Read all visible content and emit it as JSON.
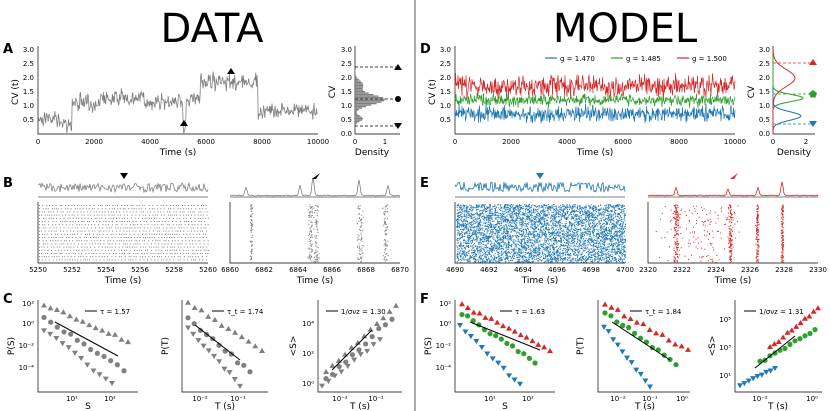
{
  "headers": {
    "data": "DATA",
    "model": "MODEL"
  },
  "panel_labels": [
    "A",
    "B",
    "C",
    "D",
    "E",
    "F"
  ],
  "colors": {
    "data": "#808080",
    "blue": "#1f77b4",
    "green": "#2ca02c",
    "red": "#d62728"
  },
  "panelA": {
    "ylabel": "CV (t)",
    "xlabel": "Time (s)",
    "xticks": [
      "0",
      "2000",
      "4000",
      "6000",
      "8000",
      "10000"
    ],
    "yticks": [
      "0.5",
      "1.0",
      "1.5",
      "2.0",
      "2.5",
      "3.0"
    ],
    "hist_ylabel": "CV",
    "hist_xlabel": "Density",
    "hist_xticks": [
      "0",
      "1"
    ],
    "hist_yticks": [
      "0.0",
      "0.5",
      "1.0",
      "1.5",
      "2.0",
      "2.5",
      "3.0"
    ]
  },
  "panelD": {
    "ylabel": "CV (t)",
    "xlabel": "Time (s)",
    "xticks": [
      "0",
      "2000",
      "4000",
      "6000",
      "8000",
      "10000"
    ],
    "yticks": [
      "0.5",
      "1.0",
      "1.5",
      "2.0",
      "2.5",
      "3.0"
    ],
    "legend": [
      "g = 1.470",
      "g = 1.485",
      "g = 1.500"
    ],
    "hist_ylabel": "CV",
    "hist_xlabel": "Density",
    "hist_xticks": [
      "0",
      "2"
    ],
    "hist_yticks": [
      "0.0",
      "0.5",
      "1.0",
      "1.5",
      "2.0",
      "2.5",
      "3.0"
    ]
  },
  "panelB": {
    "xlabel": "Time (s)",
    "left_xticks": [
      "5250",
      "5252",
      "5254",
      "5256",
      "5258",
      "5260"
    ],
    "right_xticks": [
      "6860",
      "6862",
      "6864",
      "6866",
      "6868",
      "6870"
    ]
  },
  "panelE": {
    "xlabel": "Time (s)",
    "left_xticks": [
      "4690",
      "4692",
      "4694",
      "4696",
      "4698",
      "4700"
    ],
    "right_xticks": [
      "2320",
      "2322",
      "2324",
      "2326",
      "2328",
      "2330"
    ]
  },
  "panelC": {
    "s": {
      "ylabel": "P(S)",
      "xlabel": "S",
      "legend": "τ = 1.57",
      "yticks": [
        "10²",
        "10⁰",
        "10⁻²",
        "10⁻⁴"
      ],
      "xticks": [
        "10¹",
        "10²"
      ]
    },
    "t": {
      "ylabel": "P(T)",
      "xlabel": "T (s)",
      "legend": "τ_t = 1.74",
      "xticks": [
        "10⁻²",
        "10⁻¹"
      ]
    },
    "st": {
      "ylabel": "<S>",
      "xlabel": "T (s)",
      "legend": "1/σνz = 1.30",
      "yticks": [
        "10⁴",
        "10²",
        "10⁰"
      ],
      "xticks": [
        "10⁻²",
        "10⁻¹"
      ]
    }
  },
  "panelF": {
    "s": {
      "ylabel": "P(S)",
      "xlabel": "S",
      "legend": "τ = 1.63",
      "yticks": [
        "10²",
        "10⁰",
        "10⁻²",
        "10⁻⁴"
      ],
      "xticks": [
        "10¹",
        "10²"
      ]
    },
    "t": {
      "ylabel": "P(T)",
      "xlabel": "T (s)",
      "legend": "τ_t = 1.84",
      "xticks": [
        "10⁻²",
        "10⁻¹",
        "10⁰"
      ]
    },
    "st": {
      "ylabel": "<S>",
      "xlabel": "T (s)",
      "legend": "1/σνz = 1.31",
      "yticks": [
        "10⁵",
        "10³",
        "10¹"
      ],
      "xticks": [
        "10⁻²",
        "10⁰"
      ]
    }
  }
}
